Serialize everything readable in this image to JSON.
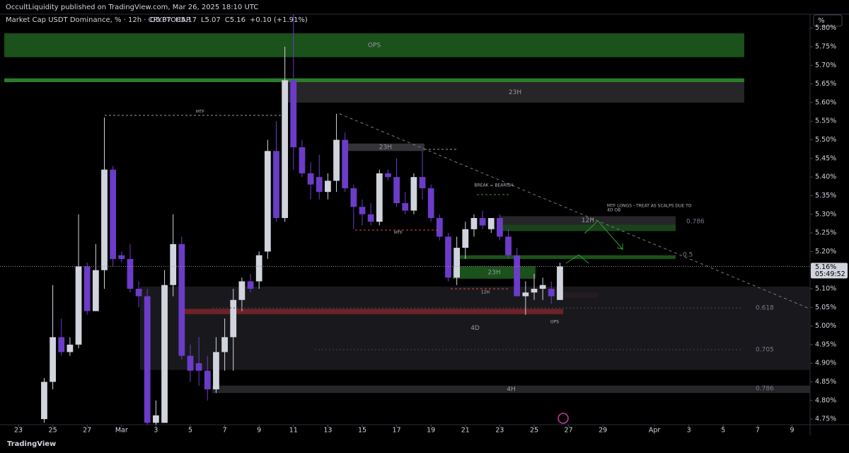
{
  "header": {
    "publisher": "OccultLiquidity published on TradingView.com, Mar 26, 2025 18:10 UTC",
    "symbol": "Market Cap USDT Dominance, % · 12h · CRYPTOCAP",
    "ohlc": [
      "O5.07",
      "H5.17",
      "L5.07",
      "C5.16",
      "+0.10 (+1.91%)"
    ],
    "unit_button": "%"
  },
  "footer": {
    "brand": "TradingView"
  },
  "chart_data": {
    "type": "candlestick",
    "up_color": "#d1d4dc",
    "down_color": "#6b3cc8",
    "x": [
      24.5,
      25,
      25.5,
      26,
      26.5,
      27,
      27.5,
      28,
      28.5,
      29,
      29.5,
      30,
      30.5,
      31,
      31.5,
      32,
      32.5,
      33,
      33.5,
      34,
      34.5,
      35,
      35.5,
      36,
      36.5,
      37,
      37.5,
      38,
      38.5,
      39,
      39.5,
      40,
      40.5,
      41,
      41.5,
      42,
      42.5,
      43,
      43.5,
      44,
      44.5,
      45,
      45.5,
      46,
      46.5,
      47,
      47.5,
      48,
      48.5,
      49,
      49.5,
      50,
      50.5,
      51,
      51.5,
      52,
      52.5,
      53,
      53.5,
      54,
      54.5
    ],
    "open": [
      4.75,
      4.85,
      4.97,
      4.93,
      4.95,
      5.16,
      5.04,
      5.15,
      5.42,
      5.19,
      5.18,
      5.1,
      5.08,
      4.74,
      4.74,
      5.11,
      5.22,
      4.92,
      4.9,
      4.88,
      4.83,
      4.93,
      4.97,
      5.07,
      5.12,
      5.12,
      5.2,
      5.47,
      5.29,
      5.66,
      5.48,
      5.41,
      5.4,
      5.36,
      5.39,
      5.5,
      5.37,
      5.32,
      5.3,
      5.28,
      5.41,
      5.4,
      5.33,
      5.31,
      5.4,
      5.37,
      5.29,
      5.24,
      5.13,
      5.21,
      5.26,
      5.29,
      5.26,
      5.29,
      5.24,
      5.19,
      5.08,
      5.09,
      5.1,
      5.1,
      5.07
    ],
    "high": [
      4.86,
      5.11,
      5.02,
      4.97,
      5.3,
      5.17,
      5.22,
      5.56,
      5.43,
      5.2,
      5.22,
      5.12,
      5.1,
      4.8,
      5.15,
      5.3,
      5.24,
      4.95,
      4.97,
      4.92,
      4.97,
      5.02,
      5.1,
      5.13,
      5.14,
      5.2,
      5.5,
      5.55,
      5.75,
      5.85,
      5.5,
      5.44,
      5.46,
      5.41,
      5.57,
      5.52,
      5.38,
      5.34,
      5.33,
      5.42,
      5.42,
      5.45,
      5.36,
      5.41,
      5.47,
      5.38,
      5.3,
      5.25,
      5.24,
      5.28,
      5.3,
      5.31,
      5.29,
      5.3,
      5.26,
      5.21,
      5.12,
      5.14,
      5.13,
      5.12,
      5.17
    ],
    "low": [
      4.74,
      4.83,
      4.92,
      4.92,
      4.94,
      5.03,
      5.04,
      5.1,
      5.16,
      5.17,
      5.09,
      5.05,
      4.73,
      4.73,
      4.74,
      5.08,
      4.91,
      4.85,
      4.84,
      4.8,
      4.82,
      4.88,
      4.88,
      5.04,
      5.09,
      5.1,
      5.18,
      5.28,
      5.28,
      5.42,
      5.4,
      5.34,
      5.34,
      5.34,
      5.36,
      5.36,
      5.26,
      5.27,
      5.27,
      5.27,
      5.39,
      5.32,
      5.3,
      5.3,
      5.34,
      5.28,
      5.23,
      5.12,
      5.11,
      5.18,
      5.24,
      5.26,
      5.25,
      5.23,
      5.18,
      5.08,
      5.03,
      5.07,
      5.07,
      5.06,
      5.07
    ],
    "close": [
      4.85,
      4.97,
      4.93,
      4.95,
      5.16,
      5.04,
      5.15,
      5.42,
      5.18,
      5.18,
      5.1,
      5.08,
      4.74,
      4.76,
      5.11,
      5.22,
      4.92,
      4.88,
      4.88,
      4.83,
      4.93,
      4.97,
      5.07,
      5.12,
      5.1,
      5.19,
      5.47,
      5.29,
      5.66,
      5.48,
      5.41,
      5.38,
      5.36,
      5.39,
      5.5,
      5.37,
      5.32,
      5.3,
      5.28,
      5.41,
      5.4,
      5.33,
      5.31,
      5.4,
      5.37,
      5.29,
      5.24,
      5.13,
      5.21,
      5.26,
      5.29,
      5.27,
      5.29,
      5.24,
      5.19,
      5.08,
      5.09,
      5.1,
      5.11,
      5.08,
      5.16
    ],
    "xlim": [
      21.93,
      69.05
    ],
    "ylim": [
      4.735,
      5.8375
    ],
    "xticks": [
      {
        "value": 23,
        "label": "23"
      },
      {
        "value": 25,
        "label": "25"
      },
      {
        "value": 27,
        "label": "27"
      },
      {
        "value": 29,
        "label": "Mar"
      },
      {
        "value": 31,
        "label": "3"
      },
      {
        "value": 33,
        "label": "5"
      },
      {
        "value": 35,
        "label": "7"
      },
      {
        "value": 37,
        "label": "9"
      },
      {
        "value": 39,
        "label": "11"
      },
      {
        "value": 41,
        "label": "13"
      },
      {
        "value": 43,
        "label": "15"
      },
      {
        "value": 45,
        "label": "17"
      },
      {
        "value": 47,
        "label": "19"
      },
      {
        "value": 49,
        "label": "21"
      },
      {
        "value": 51,
        "label": "23"
      },
      {
        "value": 53,
        "label": "25"
      },
      {
        "value": 55,
        "label": "27"
      },
      {
        "value": 57,
        "label": "29"
      },
      {
        "value": 60,
        "label": "Apr"
      },
      {
        "value": 62,
        "label": "3"
      },
      {
        "value": 64,
        "label": "5"
      },
      {
        "value": 66,
        "label": "7"
      },
      {
        "value": 68,
        "label": "9"
      }
    ],
    "yticks": [
      {
        "value": 4.75,
        "label": "4.75%"
      },
      {
        "value": 4.8,
        "label": "4.80%"
      },
      {
        "value": 4.85,
        "label": "4.85%"
      },
      {
        "value": 4.9,
        "label": "4.90%"
      },
      {
        "value": 4.95,
        "label": "4.95%"
      },
      {
        "value": 5,
        "label": "5.00%"
      },
      {
        "value": 5.05,
        "label": "5.05%"
      },
      {
        "value": 5.1,
        "label": "5.10%"
      },
      {
        "value": 5.15,
        "label": "5.15%"
      },
      {
        "value": 5.2,
        "label": "5.20%"
      },
      {
        "value": 5.25,
        "label": "5.25%"
      },
      {
        "value": 5.3,
        "label": "5.30%"
      },
      {
        "value": 5.35,
        "label": "5.35%"
      },
      {
        "value": 5.4,
        "label": "5.40%"
      },
      {
        "value": 5.45,
        "label": "5.45%"
      },
      {
        "value": 5.5,
        "label": "5.50%"
      },
      {
        "value": 5.55,
        "label": "5.55%"
      },
      {
        "value": 5.6,
        "label": "5.60%"
      },
      {
        "value": 5.65,
        "label": "5.65%"
      },
      {
        "value": 5.7,
        "label": "5.70%"
      },
      {
        "value": 5.75,
        "label": "5.75%"
      },
      {
        "value": 5.8,
        "label": "5.80%"
      }
    ],
    "last_price_label": "5.16%",
    "countdown": "05:49:52",
    "zones": [
      {
        "label": "OPS",
        "from": 22.18,
        "to": 65.22,
        "lo": 5.722,
        "hi": 5.786,
        "color": "#1e5a1e"
      },
      {
        "from": 22.18,
        "to": 65.22,
        "lo": 5.655,
        "hi": 5.665,
        "color": "#2e8b2e"
      },
      {
        "label": "23H",
        "from": 38.56,
        "to": 65.22,
        "lo": 5.6,
        "hi": 5.655,
        "color": "#2a2a2e"
      },
      {
        "label": "23H",
        "from": 42.09,
        "to": 46.62,
        "lo": 5.47,
        "hi": 5.49,
        "color": "#3a3a3e"
      },
      {
        "label": "12H",
        "from": 51.02,
        "to": 61.23,
        "lo": 5.272,
        "hi": 5.295,
        "color": "#2a2a2e"
      },
      {
        "from": 51.02,
        "to": 61.23,
        "lo": 5.255,
        "hi": 5.272,
        "color": "#1e4a1e"
      },
      {
        "from": 48.51,
        "to": 61.23,
        "lo": 5.18,
        "hi": 5.19,
        "color": "#1e5a1e"
      },
      {
        "label": "23H",
        "from": 48.27,
        "to": 53.08,
        "lo": 5.127,
        "hi": 5.16,
        "color": "#1e5a1e"
      },
      {
        "from": 54.65,
        "to": 56.7,
        "lo": 5.076,
        "hi": 5.09,
        "color": "#8b2a2a"
      },
      {
        "label": "4D",
        "from": 30.08,
        "to": 69.05,
        "lo": 4.882,
        "hi": 5.106,
        "color": "#1c1c20"
      },
      {
        "from": 32.55,
        "to": 54.69,
        "lo": 5.032,
        "hi": 5.046,
        "color": "#7a2428"
      },
      {
        "label": "4H",
        "from": 34.28,
        "to": 69.05,
        "lo": 4.82,
        "hi": 4.84,
        "color": "#2a2a2e"
      }
    ],
    "trendline": {
      "from": [
        41.68,
        5.57
      ],
      "to": [
        69.05,
        5.046
      ]
    },
    "annotations": [
      "MTF",
      "MTF",
      "BREAK = BEARISH",
      "MTF LONGS - TREAT AS SCALPS DUE TO",
      "4D OB",
      "12H",
      "OPS",
      "0.786",
      "0.5",
      "0.618",
      "0.705",
      "0.786"
    ]
  }
}
